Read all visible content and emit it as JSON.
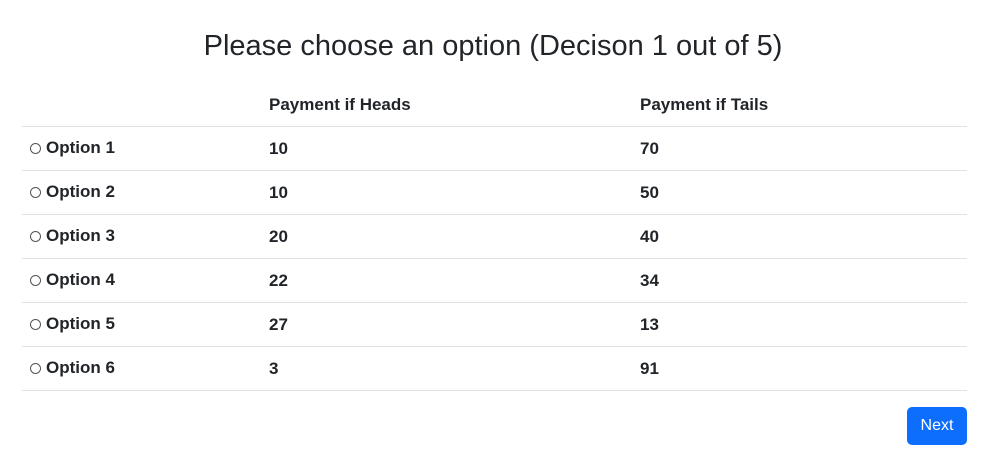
{
  "title": "Please choose an option (Decison 1 out of 5)",
  "table": {
    "headers": [
      "",
      "Payment if Heads",
      "Payment if Tails"
    ],
    "rows": [
      {
        "label": "Option 1",
        "heads": "10",
        "tails": "70"
      },
      {
        "label": "Option 2",
        "heads": "10",
        "tails": "50"
      },
      {
        "label": "Option 3",
        "heads": "20",
        "tails": "40"
      },
      {
        "label": "Option 4",
        "heads": "22",
        "tails": "34"
      },
      {
        "label": "Option 5",
        "heads": "27",
        "tails": "13"
      },
      {
        "label": "Option 6",
        "heads": "3",
        "tails": "91"
      }
    ]
  },
  "buttons": {
    "next_label": "Next"
  },
  "colors": {
    "primary": "#0d6efd",
    "text": "#212529",
    "border": "#dee2e6"
  }
}
